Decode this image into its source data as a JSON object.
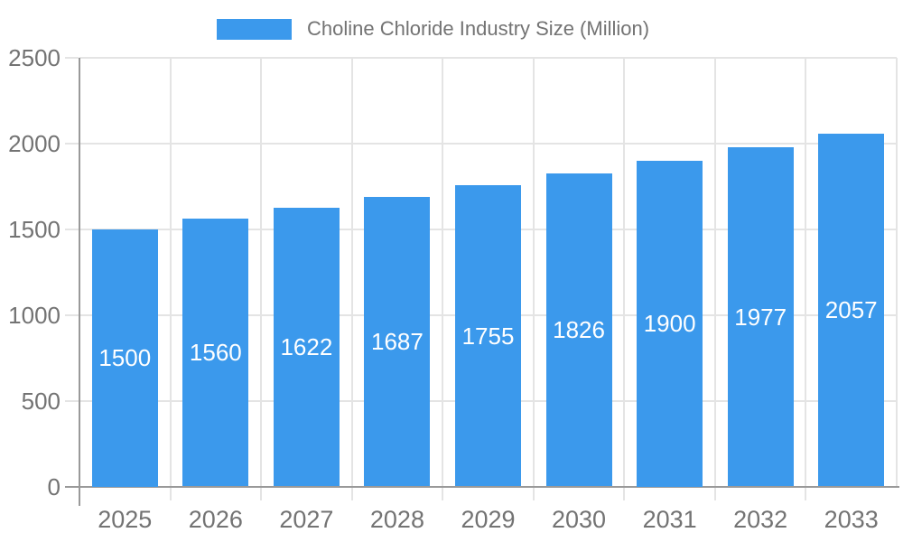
{
  "chart_data": {
    "type": "bar",
    "title": "Choline Chloride Industry Size (Million)",
    "legend": {
      "position": "top",
      "label": "Choline Chloride Industry Size (Million)"
    },
    "categories": [
      "2025",
      "2026",
      "2027",
      "2028",
      "2029",
      "2030",
      "2031",
      "2032",
      "2033"
    ],
    "series": [
      {
        "name": "Choline Chloride Industry Size (Million)",
        "values": [
          1500,
          1560,
          1622,
          1687,
          1755,
          1826,
          1900,
          1977,
          2057
        ]
      }
    ],
    "value_labels_position": "inside-center",
    "xlabel": "",
    "ylabel": "",
    "ylim": [
      0,
      2500
    ],
    "yticks": [
      0,
      500,
      1000,
      1500,
      2000,
      2500
    ],
    "ytick_labels": [
      "0",
      "500",
      "1000",
      "1500",
      "2000",
      "2500"
    ],
    "grid": true,
    "colors": {
      "bar": "#3B99EC",
      "axis_text": "#737373",
      "grid": "#E4E4E4",
      "axis_line": "#999999",
      "value_label": "#FFFFFF",
      "background": "#FFFFFF"
    }
  }
}
